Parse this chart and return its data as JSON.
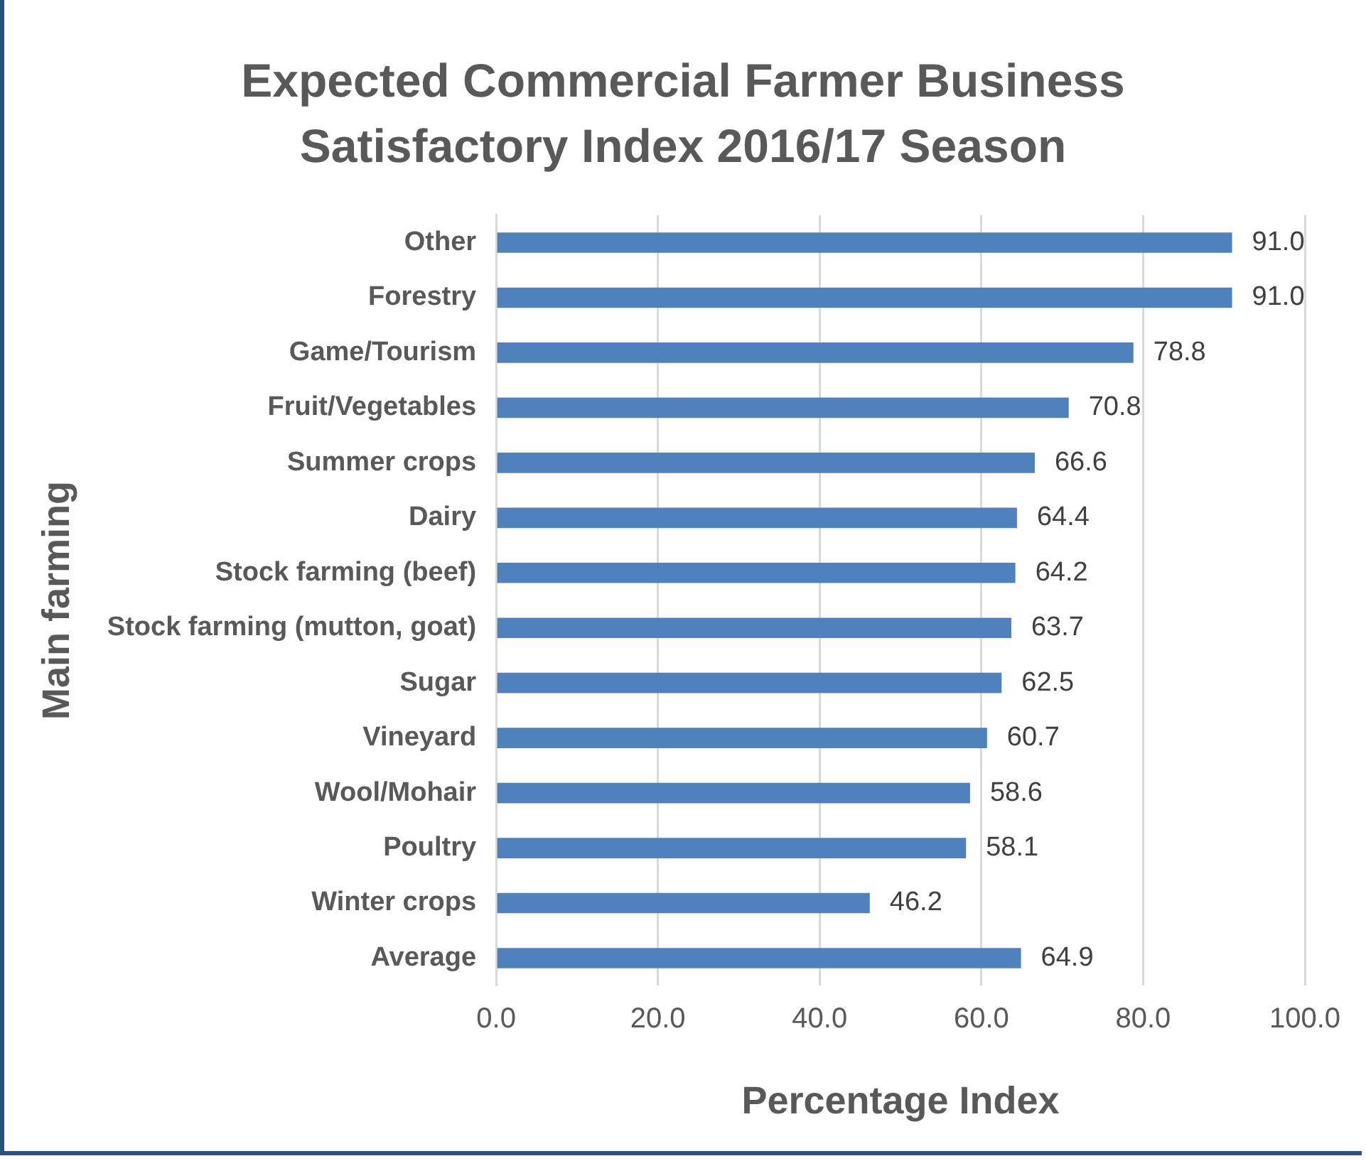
{
  "chart_data": {
    "type": "bar",
    "orientation": "horizontal",
    "title": "Expected Commercial Farmer Business Satisfactory Index 2016/17 Season",
    "xlabel": "Percentage Index",
    "ylabel": "Main farming",
    "categories": [
      "Other",
      "Forestry",
      "Game/Tourism",
      "Fruit/Vegetables",
      "Summer crops",
      "Dairy",
      "Stock farming (beef)",
      "Stock farming (mutton, goat)",
      "Sugar",
      "Vineyard",
      "Wool/Mohair",
      "Poultry",
      "Winter crops",
      "Average"
    ],
    "values": [
      91.0,
      91.0,
      78.8,
      70.8,
      66.6,
      64.4,
      64.2,
      63.7,
      62.5,
      60.7,
      58.6,
      58.1,
      46.2,
      64.9
    ],
    "value_labels": [
      "91.0",
      "91.0",
      "78.8",
      "70.8",
      "66.6",
      "64.4",
      "64.2",
      "63.7",
      "62.5",
      "60.7",
      "58.6",
      "58.1",
      "46.2",
      "64.9"
    ],
    "color": "#4f81bd",
    "xlim": [
      0,
      100
    ],
    "xticks": [
      {
        "value": 0,
        "label": "0.0"
      },
      {
        "value": 20,
        "label": "20.0"
      },
      {
        "value": 40,
        "label": "40.0"
      },
      {
        "value": 60,
        "label": "60.0"
      },
      {
        "value": 80,
        "label": "80.0"
      },
      {
        "value": 100,
        "label": "100.0"
      }
    ],
    "grid": "x",
    "legend": false
  }
}
